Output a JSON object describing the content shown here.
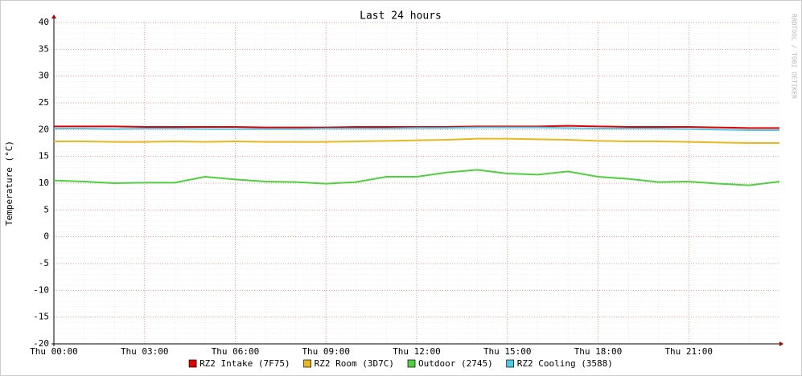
{
  "chart_data": {
    "type": "line",
    "title": "Last 24 hours",
    "y_label": "Temperature (°C)",
    "watermark": "RRDTOOL / TOBI OETIKER",
    "x": [
      0,
      1,
      2,
      3,
      4,
      5,
      6,
      7,
      8,
      9,
      10,
      11,
      12,
      13,
      14,
      15,
      16,
      17,
      18,
      19,
      20,
      21,
      22,
      23,
      24
    ],
    "xlim": [
      0,
      24
    ],
    "xticks": [
      {
        "value": 0,
        "label": "Thu 00:00"
      },
      {
        "value": 3,
        "label": "Thu 03:00"
      },
      {
        "value": 6,
        "label": "Thu 06:00"
      },
      {
        "value": 9,
        "label": "Thu 09:00"
      },
      {
        "value": 12,
        "label": "Thu 12:00"
      },
      {
        "value": 15,
        "label": "Thu 15:00"
      },
      {
        "value": 18,
        "label": "Thu 18:00"
      },
      {
        "value": 21,
        "label": "Thu 21:00"
      }
    ],
    "ylim": [
      -20,
      40
    ],
    "yticks": [
      -20,
      -15,
      -10,
      -5,
      0,
      5,
      10,
      15,
      20,
      25,
      30,
      35,
      40
    ],
    "grid": true,
    "series": [
      {
        "name": "RZ2 Intake (7F75)",
        "color": "#e00000",
        "values": [
          20.6,
          20.6,
          20.6,
          20.5,
          20.5,
          20.5,
          20.5,
          20.4,
          20.4,
          20.4,
          20.5,
          20.5,
          20.5,
          20.5,
          20.6,
          20.6,
          20.6,
          20.7,
          20.6,
          20.5,
          20.5,
          20.5,
          20.4,
          20.3,
          20.3
        ]
      },
      {
        "name": "RZ2 Room (3D7C)",
        "color": "#e8b820",
        "values": [
          17.8,
          17.8,
          17.7,
          17.7,
          17.8,
          17.7,
          17.8,
          17.7,
          17.7,
          17.7,
          17.8,
          17.9,
          18.0,
          18.1,
          18.3,
          18.3,
          18.2,
          18.1,
          17.9,
          17.8,
          17.8,
          17.7,
          17.6,
          17.5,
          17.5
        ]
      },
      {
        "name": "Outdoor (2745)",
        "color": "#50d040",
        "values": [
          10.5,
          10.3,
          10.0,
          10.1,
          10.1,
          11.2,
          10.7,
          10.3,
          10.2,
          9.9,
          10.2,
          11.2,
          11.2,
          12.0,
          12.5,
          11.8,
          11.6,
          12.2,
          11.2,
          10.8,
          10.2,
          10.3,
          9.9,
          9.6,
          10.3
        ]
      },
      {
        "name": "RZ2 Cooling (3588)",
        "color": "#50c8e8",
        "values": [
          20.2,
          20.2,
          20.1,
          20.2,
          20.2,
          20.1,
          20.1,
          20.1,
          20.1,
          20.2,
          20.2,
          20.2,
          20.3,
          20.3,
          20.4,
          20.4,
          20.4,
          20.3,
          20.2,
          20.2,
          20.2,
          20.1,
          20.0,
          19.9,
          19.9
        ]
      }
    ]
  }
}
